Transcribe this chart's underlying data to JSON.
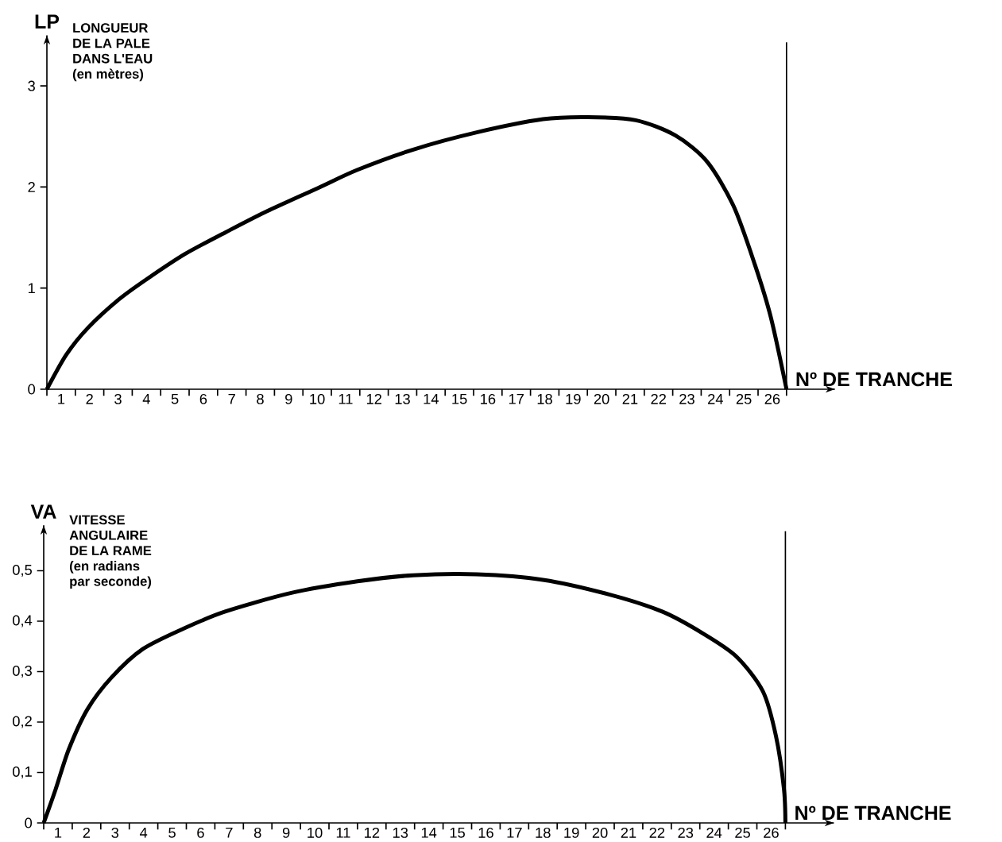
{
  "chart_data": [
    {
      "type": "line",
      "ylabel": "LP",
      "xlabel": "Nº DE TRANCHE",
      "annotations": [
        "LONGUEUR",
        "DE LA PALE",
        "DANS L'EAU",
        "(en mètres)"
      ],
      "xlim": [
        0,
        27.7
      ],
      "ylim": [
        0,
        3.5
      ],
      "xticks": [
        {
          "value": 0,
          "label": null
        },
        {
          "value": 1,
          "label": null
        },
        {
          "value": 2,
          "label": null
        },
        {
          "value": 3,
          "label": null
        },
        {
          "value": 4,
          "label": null
        },
        {
          "value": 5,
          "label": null
        },
        {
          "value": 6,
          "label": null
        },
        {
          "value": 7,
          "label": null
        },
        {
          "value": 8,
          "label": null
        },
        {
          "value": 9,
          "label": null
        },
        {
          "value": 10,
          "label": null
        },
        {
          "value": 11,
          "label": null
        },
        {
          "value": 12,
          "label": null
        },
        {
          "value": 13,
          "label": null
        },
        {
          "value": 14,
          "label": null
        },
        {
          "value": 15,
          "label": null
        },
        {
          "value": 16,
          "label": null
        },
        {
          "value": 17,
          "label": null
        },
        {
          "value": 18,
          "label": null
        },
        {
          "value": 19,
          "label": null
        },
        {
          "value": 20,
          "label": null
        },
        {
          "value": 21,
          "label": null
        },
        {
          "value": 22,
          "label": null
        },
        {
          "value": 23,
          "label": null
        },
        {
          "value": 24,
          "label": null
        },
        {
          "value": 25,
          "label": null
        },
        {
          "value": 26,
          "label": null
        },
        {
          "value": 0.5,
          "label": "1"
        },
        {
          "value": 1.5,
          "label": "2"
        },
        {
          "value": 2.5,
          "label": "3"
        },
        {
          "value": 3.5,
          "label": "4"
        },
        {
          "value": 4.5,
          "label": "5"
        },
        {
          "value": 5.5,
          "label": "6"
        },
        {
          "value": 6.5,
          "label": "7"
        },
        {
          "value": 7.5,
          "label": "8"
        },
        {
          "value": 8.5,
          "label": "9"
        },
        {
          "value": 9.5,
          "label": "10"
        },
        {
          "value": 10.5,
          "label": "11"
        },
        {
          "value": 11.5,
          "label": "12"
        },
        {
          "value": 12.5,
          "label": "13"
        },
        {
          "value": 13.5,
          "label": "14"
        },
        {
          "value": 14.5,
          "label": "15"
        },
        {
          "value": 15.5,
          "label": "16"
        },
        {
          "value": 16.5,
          "label": "17"
        },
        {
          "value": 17.5,
          "label": "18"
        },
        {
          "value": 18.5,
          "label": "19"
        },
        {
          "value": 19.5,
          "label": "20"
        },
        {
          "value": 20.5,
          "label": "21"
        },
        {
          "value": 21.5,
          "label": "22"
        },
        {
          "value": 22.5,
          "label": "23"
        },
        {
          "value": 23.5,
          "label": "24"
        },
        {
          "value": 24.5,
          "label": "25"
        },
        {
          "value": 25.5,
          "label": "26"
        }
      ],
      "yticks": [
        0,
        1,
        2,
        3
      ],
      "series": [
        {
          "color": "#000000",
          "x": [
            0,
            0.68,
            1.42,
            2.54,
            3.57,
            4.87,
            6.27,
            7.66,
            9.53,
            10.92,
            12.88,
            15.11,
            17.44,
            19.02,
            20.7,
            22.09,
            23.21,
            24.14,
            24.89,
            25.45,
            26
          ],
          "values": [
            0,
            0.34,
            0.6,
            0.89,
            1.1,
            1.34,
            1.55,
            1.75,
            1.99,
            2.17,
            2.37,
            2.54,
            2.67,
            2.69,
            2.66,
            2.51,
            2.25,
            1.81,
            1.23,
            0.71,
            0
          ]
        }
      ],
      "ref_lines": [
        {
          "axis": "x",
          "value": 26,
          "color": "#000000"
        }
      ]
    },
    {
      "type": "line",
      "ylabel": "VA",
      "xlabel": "Nº DE TRANCHE",
      "annotations": [
        "VITESSE",
        "ANGULAIRE",
        "DE LA RAME",
        "(en radians",
        "par seconde)"
      ],
      "xlim": [
        0,
        27.7
      ],
      "ylim": [
        0,
        0.59
      ],
      "xticks": [
        {
          "value": 0,
          "label": null
        },
        {
          "value": 1,
          "label": null
        },
        {
          "value": 2,
          "label": null
        },
        {
          "value": 3,
          "label": null
        },
        {
          "value": 4,
          "label": null
        },
        {
          "value": 5,
          "label": null
        },
        {
          "value": 6,
          "label": null
        },
        {
          "value": 7,
          "label": null
        },
        {
          "value": 8,
          "label": null
        },
        {
          "value": 9,
          "label": null
        },
        {
          "value": 10,
          "label": null
        },
        {
          "value": 11,
          "label": null
        },
        {
          "value": 12,
          "label": null
        },
        {
          "value": 13,
          "label": null
        },
        {
          "value": 14,
          "label": null
        },
        {
          "value": 15,
          "label": null
        },
        {
          "value": 16,
          "label": null
        },
        {
          "value": 17,
          "label": null
        },
        {
          "value": 18,
          "label": null
        },
        {
          "value": 19,
          "label": null
        },
        {
          "value": 20,
          "label": null
        },
        {
          "value": 21,
          "label": null
        },
        {
          "value": 22,
          "label": null
        },
        {
          "value": 23,
          "label": null
        },
        {
          "value": 24,
          "label": null
        },
        {
          "value": 25,
          "label": null
        },
        {
          "value": 26,
          "label": null
        },
        {
          "value": 0.5,
          "label": "1"
        },
        {
          "value": 1.5,
          "label": "2"
        },
        {
          "value": 2.5,
          "label": "3"
        },
        {
          "value": 3.5,
          "label": "4"
        },
        {
          "value": 4.5,
          "label": "5"
        },
        {
          "value": 5.5,
          "label": "6"
        },
        {
          "value": 6.5,
          "label": "7"
        },
        {
          "value": 7.5,
          "label": "8"
        },
        {
          "value": 8.5,
          "label": "9"
        },
        {
          "value": 9.5,
          "label": "10"
        },
        {
          "value": 10.5,
          "label": "11"
        },
        {
          "value": 11.5,
          "label": "12"
        },
        {
          "value": 12.5,
          "label": "13"
        },
        {
          "value": 13.5,
          "label": "14"
        },
        {
          "value": 14.5,
          "label": "15"
        },
        {
          "value": 15.5,
          "label": "16"
        },
        {
          "value": 16.5,
          "label": "17"
        },
        {
          "value": 17.5,
          "label": "18"
        },
        {
          "value": 18.5,
          "label": "19"
        },
        {
          "value": 19.5,
          "label": "20"
        },
        {
          "value": 20.5,
          "label": "21"
        },
        {
          "value": 21.5,
          "label": "22"
        },
        {
          "value": 22.5,
          "label": "23"
        },
        {
          "value": 23.5,
          "label": "24"
        },
        {
          "value": 24.5,
          "label": "25"
        },
        {
          "value": 25.5,
          "label": "26"
        }
      ],
      "yticks": [
        0,
        {
          "value": 0.1,
          "label": "0,1"
        },
        {
          "value": 0.2,
          "label": "0,2"
        },
        {
          "value": 0.3,
          "label": "0,3"
        },
        {
          "value": 0.4,
          "label": "0,4"
        },
        {
          "value": 0.5,
          "label": "0,5"
        }
      ],
      "series": [
        {
          "color": "#000000",
          "x": [
            0,
            0.42,
            0.88,
            1.53,
            2.37,
            3.48,
            4.97,
            6.36,
            8.68,
            11.0,
            12.95,
            15.18,
            17.5,
            19.82,
            21.68,
            23.07,
            24.28,
            25.21,
            25.67,
            25.95,
            26
          ],
          "values": [
            0,
            0.067,
            0.146,
            0.225,
            0.288,
            0.345,
            0.387,
            0.419,
            0.456,
            0.479,
            0.491,
            0.493,
            0.482,
            0.453,
            0.419,
            0.377,
            0.33,
            0.261,
            0.172,
            0.067,
            0
          ]
        }
      ],
      "ref_lines": [
        {
          "axis": "x",
          "value": 26,
          "color": "#000000"
        }
      ]
    }
  ]
}
